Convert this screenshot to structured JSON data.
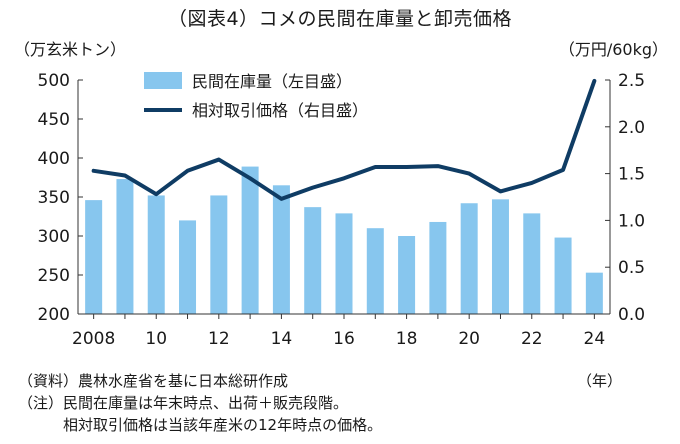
{
  "title": "（図表4）コメの民間在庫量と卸売価格",
  "left_unit": "（万玄米トン）",
  "right_unit": "（万円/60kg）",
  "x_unit": "（年）",
  "notes": [
    "（資料）農林水産省を基に日本総研作成",
    "（注）民間在庫量は年末時点、出荷＋販売段階。",
    "　　　相対取引価格は当該年産米の12年時点の価格。"
  ],
  "colors": {
    "bar": "#87c6ee",
    "line": "#0f3c64",
    "axis": "#333333"
  },
  "chart_data": {
    "type": "bar+line",
    "years": [
      2008,
      2009,
      2010,
      2011,
      2012,
      2013,
      2014,
      2015,
      2016,
      2017,
      2018,
      2019,
      2020,
      2021,
      2022,
      2023,
      2024
    ],
    "x_tick_labels": [
      "2008",
      "",
      "10",
      "",
      "12",
      "",
      "14",
      "",
      "16",
      "",
      "18",
      "",
      "20",
      "",
      "22",
      "",
      "24"
    ],
    "series": [
      {
        "name": "民間在庫量（左目盛）",
        "kind": "bar",
        "axis": "left",
        "values": [
          346,
          373,
          352,
          320,
          352,
          389,
          365,
          337,
          329,
          310,
          300,
          318,
          342,
          347,
          329,
          298,
          253
        ]
      },
      {
        "name": "相対取引価格（右目盛）",
        "kind": "line",
        "axis": "right",
        "values": [
          1.53,
          1.48,
          1.28,
          1.53,
          1.65,
          1.45,
          1.23,
          1.35,
          1.45,
          1.57,
          1.57,
          1.58,
          1.5,
          1.31,
          1.4,
          1.54,
          2.49
        ]
      }
    ],
    "left_axis": {
      "min": 200,
      "max": 500,
      "ticks": [
        "200",
        "250",
        "300",
        "350",
        "400",
        "450",
        "500"
      ]
    },
    "right_axis": {
      "min": 0,
      "max": 2.5,
      "ticks": [
        "0.0",
        "0.5",
        "1.0",
        "1.5",
        "2.0",
        "2.5"
      ]
    },
    "grid": false,
    "legend_position": "top-left"
  }
}
